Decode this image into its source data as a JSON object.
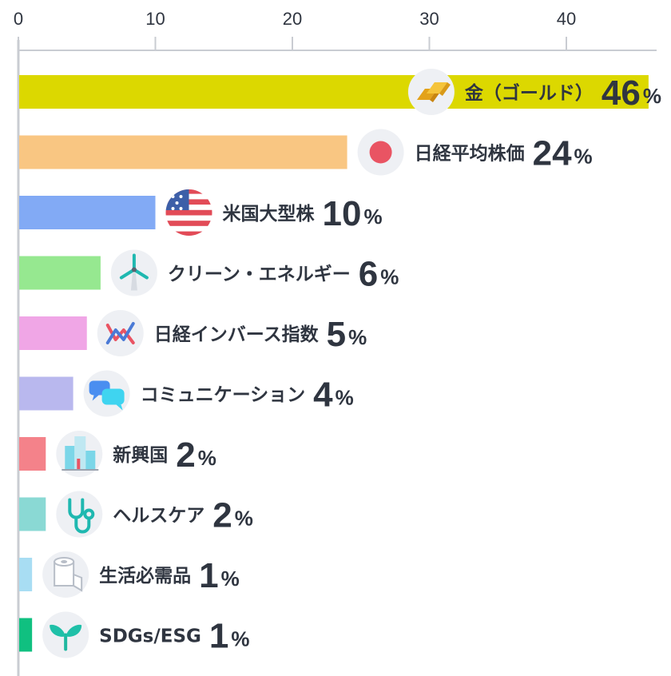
{
  "chart_data": {
    "type": "bar",
    "orientation": "horizontal",
    "xlim": [
      0,
      46
    ],
    "ticks": [
      "0",
      "10",
      "20",
      "30",
      "40"
    ],
    "grid": false,
    "categories": [
      "金（ゴールド）",
      "日経平均株価",
      "米国大型株",
      "クリーン・エネルギー",
      "日経インバース指数",
      "コミュニケーション",
      "新興国",
      "ヘルスケア",
      "生活必需品",
      "SDGs/ESG"
    ],
    "values": [
      46,
      24,
      10,
      6,
      5,
      4,
      2,
      2,
      1,
      1
    ],
    "value_suffix": "%",
    "colors": [
      "#dcd800",
      "#f9c682",
      "#82aaf5",
      "#96e890",
      "#f0a6e6",
      "#b9b8ee",
      "#f4828a",
      "#8ad9d4",
      "#a8ddf3",
      "#10c080"
    ],
    "icons": [
      "gold-bars-icon",
      "red-dot-icon",
      "us-flag-icon",
      "wind-turbine-icon",
      "zigzag-chart-icon",
      "chat-bubbles-icon",
      "buildings-icon",
      "stethoscope-icon",
      "toilet-paper-icon",
      "sprout-icon"
    ]
  }
}
